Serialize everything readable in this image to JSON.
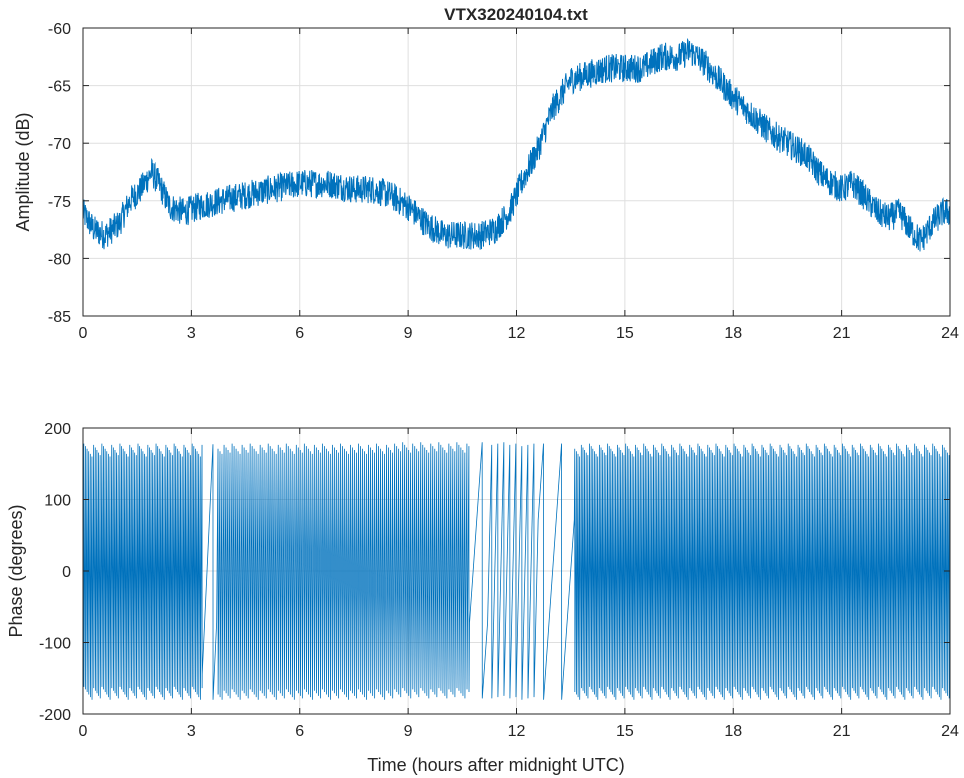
{
  "chart_data": [
    {
      "type": "line",
      "title": "VTX320240104.txt",
      "xlabel": "",
      "ylabel": "Amplitude (dB)",
      "xlim": [
        0,
        24
      ],
      "ylim": [
        -85,
        -60
      ],
      "xticks": [
        0,
        3,
        6,
        9,
        12,
        15,
        18,
        21,
        24
      ],
      "yticks": [
        -85,
        -80,
        -75,
        -70,
        -65,
        -60
      ],
      "xtick_labels": [
        "0",
        "3",
        "6",
        "9",
        "12",
        "15",
        "18",
        "21",
        "24"
      ],
      "ytick_labels": [
        "-85",
        "-80",
        "-75",
        "-70",
        "-65",
        "-60"
      ],
      "grid": true,
      "color": "#0072BD",
      "noise_band_db": 2.5,
      "series": [
        {
          "x": [
            0,
            0.3,
            0.6,
            1.0,
            1.3,
            1.6,
            1.9,
            2.1,
            2.4,
            2.8,
            3.2,
            3.8,
            4.5,
            5.2,
            6.0,
            6.8,
            7.5,
            8.0,
            8.5,
            9.0,
            9.5,
            10.0,
            10.5,
            11.0,
            11.4,
            11.8,
            12.2,
            12.6,
            13.0,
            13.5,
            14.0,
            14.5,
            15.0,
            15.5,
            16.0,
            16.5,
            16.8,
            17.2,
            17.6,
            18.0,
            18.5,
            19.0,
            19.5,
            20.0,
            20.5,
            21.0,
            21.3,
            21.6,
            22.0,
            22.3,
            22.6,
            22.9,
            23.2,
            23.5,
            23.8,
            24.0
          ],
          "y": [
            -76,
            -77.5,
            -78,
            -77,
            -75,
            -74,
            -72.5,
            -73.5,
            -75.5,
            -76,
            -75.5,
            -75,
            -74.5,
            -74,
            -73.5,
            -73.5,
            -74,
            -74,
            -74.5,
            -75.5,
            -77,
            -78,
            -78,
            -78,
            -77.5,
            -76,
            -73,
            -70.5,
            -67,
            -64.5,
            -64,
            -63.5,
            -63.5,
            -63.5,
            -62.5,
            -62.5,
            -62,
            -63,
            -64.5,
            -66,
            -67.5,
            -69,
            -70,
            -71,
            -73,
            -74,
            -73.5,
            -74.5,
            -76,
            -76.5,
            -76,
            -77.5,
            -78.5,
            -77,
            -76,
            -76
          ]
        }
      ]
    },
    {
      "type": "line",
      "title": "",
      "xlabel": "Time (hours after midnight UTC)",
      "ylabel": "Phase (degrees)",
      "xlim": [
        0,
        24
      ],
      "ylim": [
        -200,
        200
      ],
      "xticks": [
        0,
        3,
        6,
        9,
        12,
        15,
        18,
        21,
        24
      ],
      "yticks": [
        -200,
        -100,
        0,
        100,
        200
      ],
      "xtick_labels": [
        "0",
        "3",
        "6",
        "9",
        "12",
        "15",
        "18",
        "21",
        "24"
      ],
      "ytick_labels": [
        "-200",
        "-100",
        "0",
        "100",
        "200"
      ],
      "grid": true,
      "color": "#0072BD",
      "series": [
        {
          "description_of_pattern": "sawtooth wrapping between -180 and 180",
          "wrap_limit": 180,
          "segments": [
            {
              "x_start": 0,
              "x_end": 3.3,
              "cycles_per_hour": 22
            },
            {
              "x_start": 3.3,
              "x_end": 3.7,
              "cycles_per_hour": 3
            },
            {
              "x_start": 3.7,
              "x_end": 10.7,
              "cycles_per_hour": 18
            },
            {
              "x_start": 10.7,
              "x_end": 11.2,
              "cycles_per_hour": 2
            },
            {
              "x_start": 11.2,
              "x_end": 12.6,
              "cycles_per_hour": 6
            },
            {
              "x_start": 12.6,
              "x_end": 13.6,
              "cycles_per_hour": 2
            },
            {
              "x_start": 13.6,
              "x_end": 24,
              "cycles_per_hour": 22
            }
          ]
        }
      ]
    }
  ]
}
